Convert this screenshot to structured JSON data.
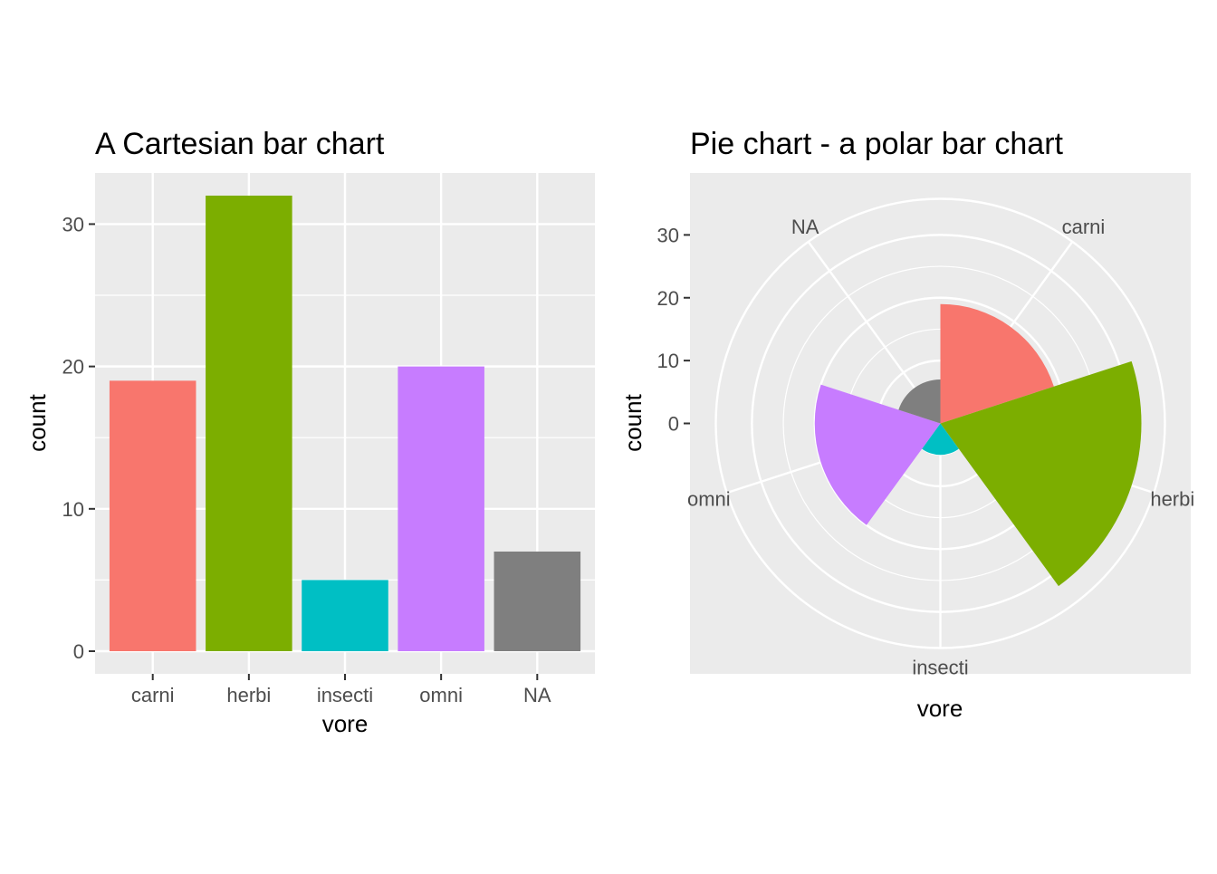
{
  "chart_data": [
    {
      "type": "bar",
      "title": "A Cartesian bar chart",
      "xlabel": "vore",
      "ylabel": "count",
      "categories": [
        "carni",
        "herbi",
        "insecti",
        "omni",
        "NA"
      ],
      "values": [
        19,
        32,
        5,
        20,
        7
      ],
      "colors": [
        "#F8766D",
        "#7CAE00",
        "#00BFC4",
        "#C77CFF",
        "#7F7F7F"
      ],
      "yticks": [
        0,
        10,
        20,
        30
      ],
      "ylim": [
        0,
        32
      ],
      "grid": true,
      "legend": "none"
    },
    {
      "type": "pie",
      "coord": "polar",
      "title": "Pie chart - a polar bar chart",
      "xlabel": "vore",
      "ylabel": "count",
      "categories": [
        "carni",
        "herbi",
        "insecti",
        "omni",
        "NA"
      ],
      "values": [
        19,
        32,
        5,
        20,
        7
      ],
      "colors": [
        "#F8766D",
        "#7CAE00",
        "#00BFC4",
        "#C77CFF",
        "#7F7F7F"
      ],
      "yticks": [
        0,
        10,
        20,
        30
      ],
      "ylim": [
        0,
        32
      ],
      "grid": true,
      "legend": "none"
    }
  ]
}
